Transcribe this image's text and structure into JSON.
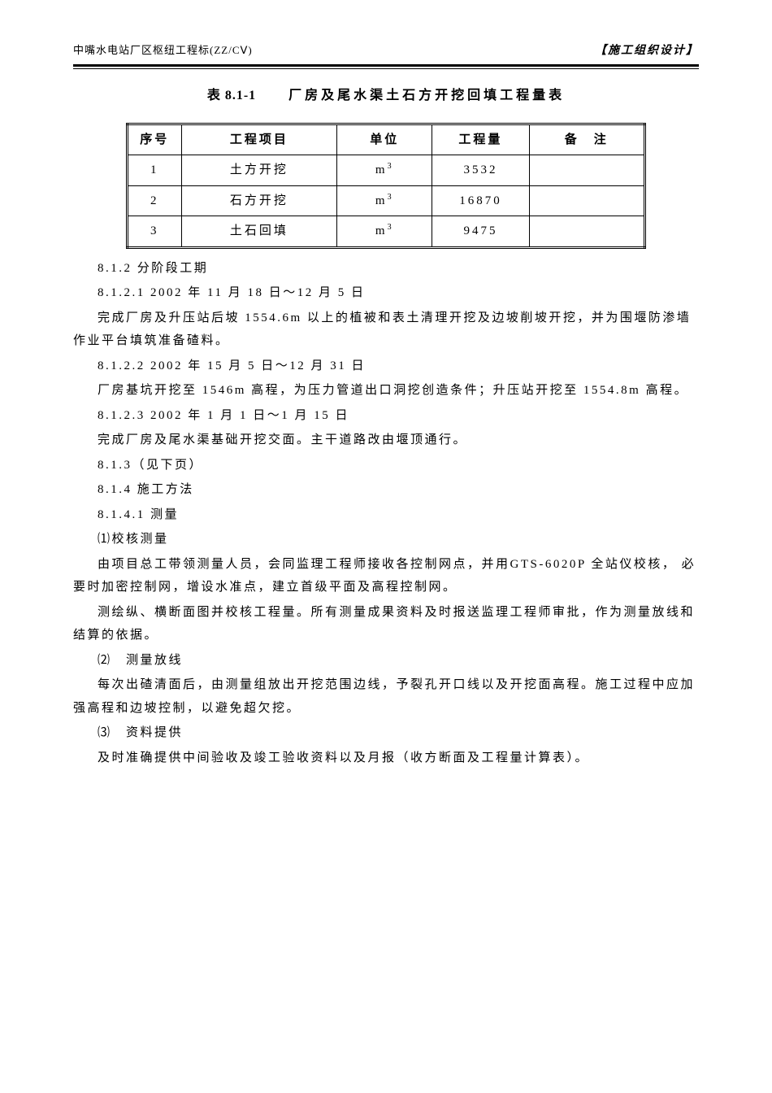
{
  "header": {
    "left": "中嘴水电站厂区枢纽工程标(ZZ/CⅤ)",
    "right": "【施工组织设计】"
  },
  "table": {
    "title_prefix": "表 8.1-1",
    "title_main": "厂房及尾水渠土石方开挖回填工程量表",
    "columns": [
      "序号",
      "工程项目",
      "单位",
      "工程量",
      "备　注"
    ],
    "unit_base": "m",
    "unit_exp": "3",
    "rows": [
      {
        "seq": "1",
        "item": "土方开挖",
        "qty": "3532",
        "note": ""
      },
      {
        "seq": "2",
        "item": "石方开挖",
        "qty": "16870",
        "note": ""
      },
      {
        "seq": "3",
        "item": "土石回填",
        "qty": "9475",
        "note": ""
      }
    ]
  },
  "body": {
    "p1": "8.1.2 分阶段工期",
    "p2": "8.1.2.1 2002 年 11 月 18 日～12 月 5 日",
    "p3": "完成厂房及升压站后坡 1554.6m 以上的植被和表土清理开挖及边坡削坡开挖，并为围堰防渗墙作业平台填筑准备碴料。",
    "p4": "8.1.2.2 2002 年 15 月 5 日～12 月 31 日",
    "p5": "厂房基坑开挖至 1546m 高程，为压力管道出口洞挖创造条件；升压站开挖至 1554.8m 高程。",
    "p6": "8.1.2.3 2002 年 1 月 1 日～1 月 15 日",
    "p7": "完成厂房及尾水渠基础开挖交面。主干道路改由堰顶通行。",
    "p8": "8.1.3（见下页）",
    "p9": "8.1.4 施工方法",
    "p10": "8.1.4.1 测量",
    "p11": "⑴校核测量",
    "p12": "由项目总工带领测量人员，会同监理工程师接收各控制网点，并用GTS-6020P 全站仪校核， 必要时加密控制网，增设水准点，建立首级平面及高程控制网。",
    "p13": "测绘纵、横断面图并校核工程量。所有测量成果资料及时报送监理工程师审批，作为测量放线和结算的依据。",
    "p14": "⑵　测量放线",
    "p15": "每次出碴清面后，由测量组放出开挖范围边线，予裂孔开口线以及开挖面高程。施工过程中应加强高程和边坡控制，以避免超欠挖。",
    "p16": "⑶　资料提供",
    "p17": "及时准确提供中间验收及竣工验收资料以及月报（收方断面及工程量计算表）。"
  }
}
